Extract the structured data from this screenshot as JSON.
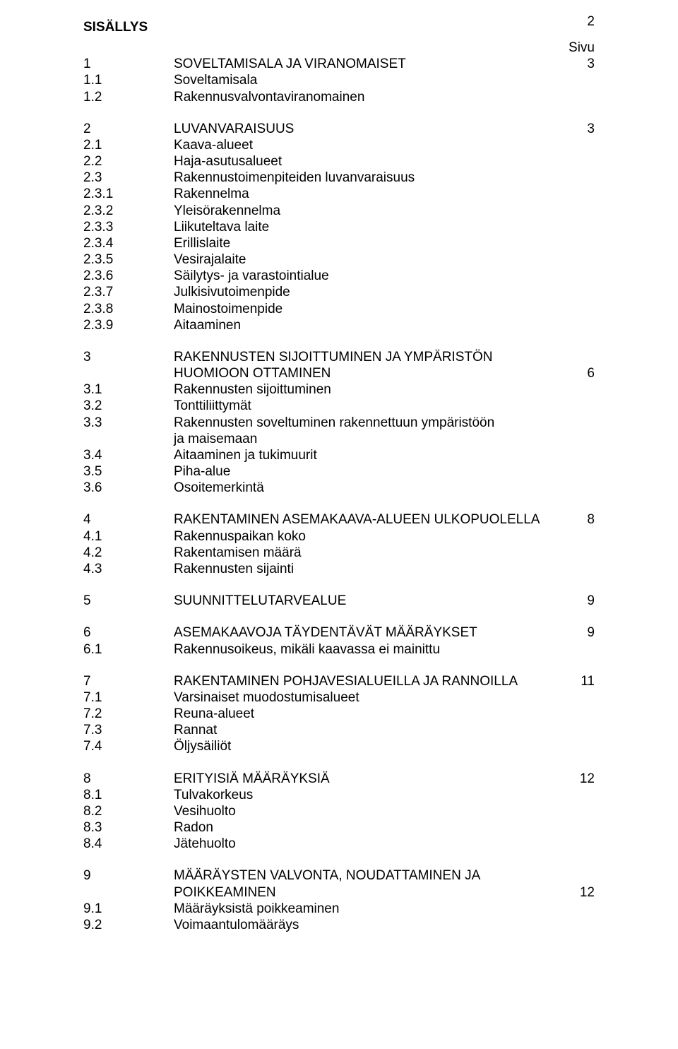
{
  "page_number": "2",
  "heading": "SISÄLLYS",
  "sivu_label": "Sivu",
  "sections": [
    {
      "rows": [
        {
          "num": "1",
          "title": "SOVELTAMISALA JA VIRANOMAISET",
          "pg": "3"
        },
        {
          "num": "1.1",
          "title": "Soveltamisala",
          "pg": ""
        },
        {
          "num": "1.2",
          "title": "Rakennusvalvontaviranomainen",
          "pg": ""
        }
      ]
    },
    {
      "rows": [
        {
          "num": "2",
          "title": "LUVANVARAISUUS",
          "pg": "3"
        },
        {
          "num": "2.1",
          "title": "Kaava-alueet",
          "pg": ""
        },
        {
          "num": "2.2",
          "title": "Haja-asutusalueet",
          "pg": ""
        },
        {
          "num": "2.3",
          "title": "Rakennustoimenpiteiden luvanvaraisuus",
          "pg": ""
        },
        {
          "num": "2.3.1",
          "title": "Rakennelma",
          "pg": ""
        },
        {
          "num": "2.3.2",
          "title": "Yleisörakennelma",
          "pg": ""
        },
        {
          "num": "2.3.3",
          "title": "Liikuteltava laite",
          "pg": ""
        },
        {
          "num": "2.3.4",
          "title": "Erillislaite",
          "pg": ""
        },
        {
          "num": "2.3.5",
          "title": "Vesirajalaite",
          "pg": ""
        },
        {
          "num": "2.3.6",
          "title": "Säilytys- ja varastointialue",
          "pg": ""
        },
        {
          "num": "2.3.7",
          "title": "Julkisivutoimenpide",
          "pg": ""
        },
        {
          "num": "2.3.8",
          "title": "Mainostoimenpide",
          "pg": ""
        },
        {
          "num": "2.3.9",
          "title": "Aitaaminen",
          "pg": ""
        }
      ]
    },
    {
      "rows": [
        {
          "num": "3",
          "title": "RAKENNUSTEN SIJOITTUMINEN JA YMPÄRISTÖN",
          "pg": ""
        },
        {
          "num": "",
          "title": "HUOMIOON OTTAMINEN",
          "pg": "6"
        },
        {
          "num": "3.1",
          "title": "Rakennusten sijoittuminen",
          "pg": ""
        },
        {
          "num": "3.2",
          "title": "Tonttiliittymät",
          "pg": ""
        },
        {
          "num": "3.3",
          "title": "Rakennusten soveltuminen rakennettuun ympäristöön",
          "pg": ""
        },
        {
          "num": "",
          "title": "ja maisemaan",
          "pg": ""
        },
        {
          "num": "3.4",
          "title": "Aitaaminen ja tukimuurit",
          "pg": ""
        },
        {
          "num": "3.5",
          "title": "Piha-alue",
          "pg": ""
        },
        {
          "num": "3.6",
          "title": "Osoitemerkintä",
          "pg": ""
        }
      ]
    },
    {
      "rows": [
        {
          "num": "4",
          "title": "RAKENTAMINEN ASEMAKAAVA-ALUEEN ULKOPUOLELLA",
          "pg": "8"
        },
        {
          "num": "4.1",
          "title": "Rakennuspaikan koko",
          "pg": ""
        },
        {
          "num": "4.2",
          "title": "Rakentamisen määrä",
          "pg": ""
        },
        {
          "num": "4.3",
          "title": "Rakennusten sijainti",
          "pg": ""
        }
      ]
    },
    {
      "rows": [
        {
          "num": "5",
          "title": "SUUNNITTELUTARVEALUE",
          "pg": "9"
        }
      ]
    },
    {
      "rows": [
        {
          "num": "6",
          "title": "ASEMAKAAVOJA TÄYDENTÄVÄT MÄÄRÄYKSET",
          "pg": "9"
        },
        {
          "num": "6.1",
          "title": "Rakennusoikeus, mikäli kaavassa ei mainittu",
          "pg": ""
        }
      ]
    },
    {
      "rows": [
        {
          "num": "7",
          "title": "RAKENTAMINEN POHJAVESIALUEILLA JA RANNOILLA",
          "pg": "11"
        },
        {
          "num": "7.1",
          "title": "Varsinaiset muodostumisalueet",
          "pg": ""
        },
        {
          "num": "7.2",
          "title": "Reuna-alueet",
          "pg": ""
        },
        {
          "num": "7.3",
          "title": "Rannat",
          "pg": ""
        },
        {
          "num": "7.4",
          "title": "Öljysäiliöt",
          "pg": ""
        }
      ]
    },
    {
      "rows": [
        {
          "num": "8",
          "title": "ERITYISIÄ MÄÄRÄYKSIÄ",
          "pg": "12"
        },
        {
          "num": "8.1",
          "title": "Tulvakorkeus",
          "pg": ""
        },
        {
          "num": "8.2",
          "title": "Vesihuolto",
          "pg": ""
        },
        {
          "num": "8.3",
          "title": "Radon",
          "pg": ""
        },
        {
          "num": "8.4",
          "title": "Jätehuolto",
          "pg": ""
        }
      ]
    },
    {
      "rows": [
        {
          "num": "9",
          "title": "MÄÄRÄYSTEN VALVONTA, NOUDATTAMINEN  JA",
          "pg": ""
        },
        {
          "num": "",
          "title": "POIKKEAMINEN",
          "pg": "12"
        },
        {
          "num": "9.1",
          "title": "Määräyksistä poikkeaminen",
          "pg": ""
        },
        {
          "num": "9.2",
          "title": "Voimaantulomääräys",
          "pg": ""
        }
      ]
    }
  ]
}
